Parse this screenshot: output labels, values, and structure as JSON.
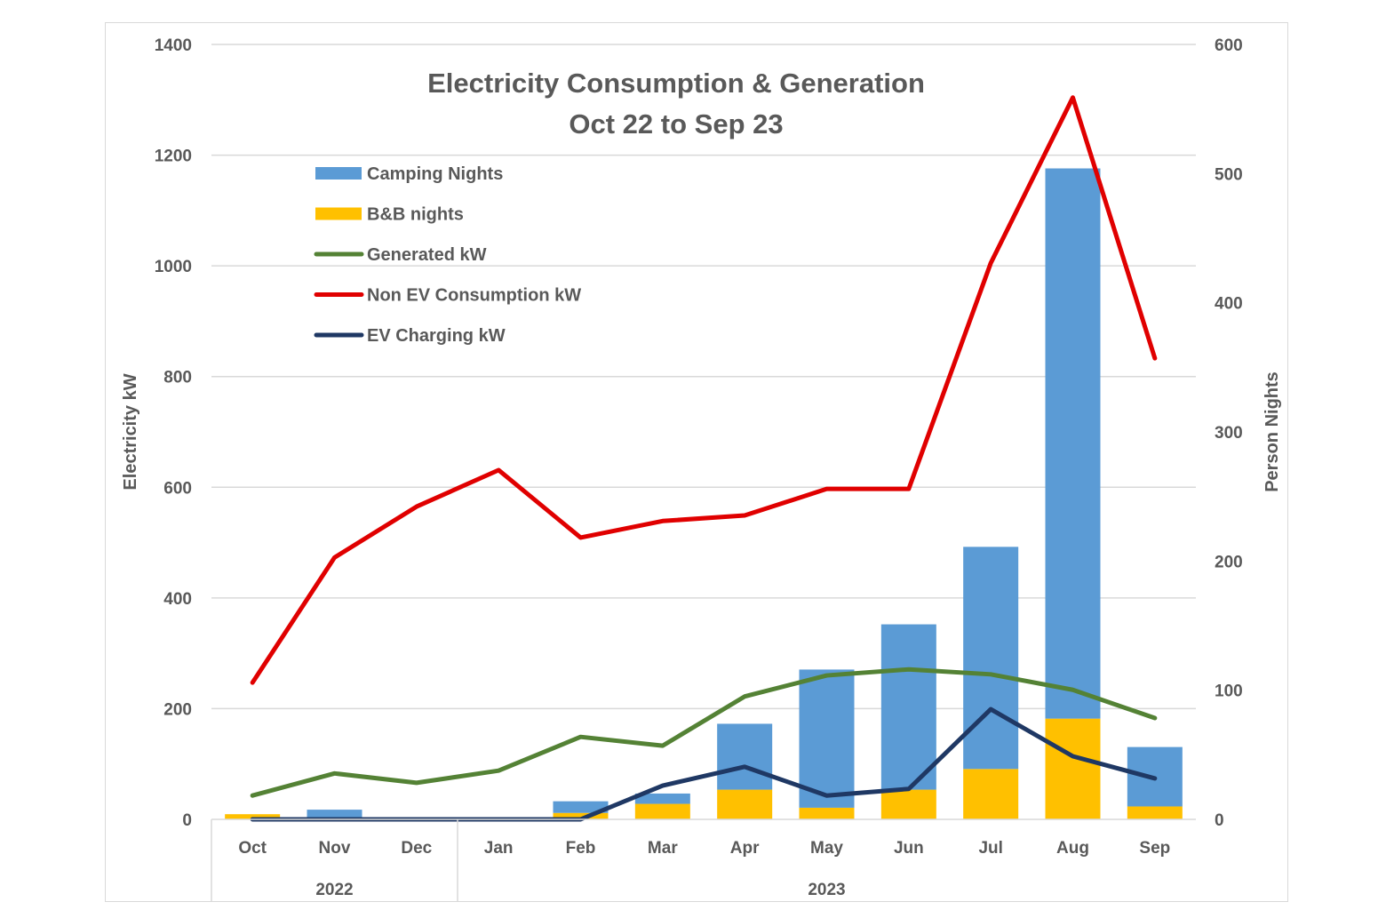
{
  "chart_data": {
    "type": "bar",
    "subtype": "stacked-bar-with-lines-dual-axis",
    "title": "Electricity Consumption & Generation",
    "subtitle": "Oct 22 to Sep 23",
    "categories": [
      "Oct",
      "Nov",
      "Dec",
      "Jan",
      "Feb",
      "Mar",
      "Apr",
      "May",
      "Jun",
      "Jul",
      "Aug",
      "Sep"
    ],
    "category_groups": [
      {
        "label": "2022",
        "span": [
          "Oct",
          "Dec"
        ]
      },
      {
        "label": "2023",
        "span": [
          "Jan",
          "Sep"
        ]
      }
    ],
    "ylabel": "Electricity kW",
    "y2label": "Person Nights",
    "ylim": [
      0,
      1400
    ],
    "y2lim": [
      0,
      600
    ],
    "yticks": [
      0,
      200,
      400,
      600,
      800,
      1000,
      1200,
      1400
    ],
    "y2ticks": [
      0,
      100,
      200,
      300,
      400,
      500,
      600
    ],
    "grid": true,
    "legend_position": "top-left",
    "series": [
      {
        "name": "Camping Nights",
        "kind": "bar",
        "axis": "right",
        "stack": "nights",
        "color": "#5B9BD5",
        "values": [
          0,
          7.5,
          0,
          0,
          9,
          8,
          51,
          107,
          128,
          172,
          426,
          46
        ]
      },
      {
        "name": "B&B nights",
        "kind": "bar",
        "axis": "right",
        "stack": "nights",
        "color": "#FFC000",
        "values": [
          4,
          0,
          0,
          0,
          5,
          12,
          23,
          9,
          23,
          39,
          78,
          10
        ]
      },
      {
        "name": "Generated kW",
        "kind": "line",
        "axis": "left",
        "color": "#548235",
        "values": [
          43,
          83,
          66,
          88,
          149,
          133,
          222,
          260,
          271,
          262,
          234,
          183
        ]
      },
      {
        "name": "Non EV Consumption kW",
        "kind": "line",
        "axis": "left",
        "color": "#E00000",
        "values": [
          247,
          473,
          565,
          631,
          509,
          539,
          549,
          597,
          597,
          1005,
          1304,
          833
        ]
      },
      {
        "name": "EV Charging kW",
        "kind": "line",
        "axis": "left",
        "color": "#1F3864",
        "values": [
          0,
          0,
          0,
          0,
          0,
          61,
          95,
          43,
          55,
          199,
          114,
          74
        ]
      }
    ],
    "legend_order": [
      "Camping Nights",
      "B&B nights",
      "Generated kW",
      "Non EV Consumption kW",
      "EV Charging kW"
    ]
  }
}
